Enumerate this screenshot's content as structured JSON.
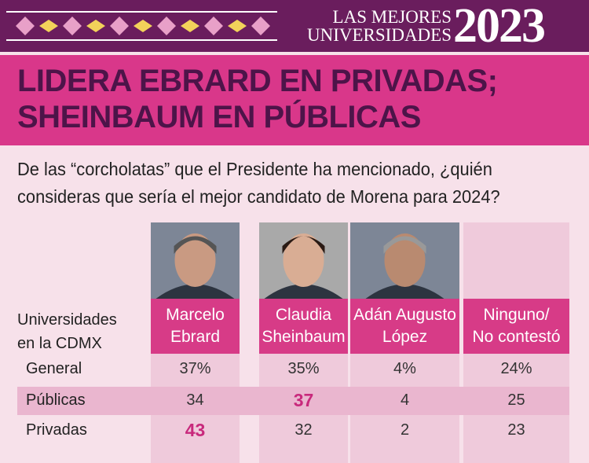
{
  "header": {
    "series": [
      "LAS MEJORES",
      "UNIVERSIDADES"
    ],
    "year": "2023"
  },
  "title": [
    "LIDERA EBRARD EN PRIVADAS;",
    "SHEINBAUM EN PÚBLICAS"
  ],
  "question": [
    "De las “corcholatas” que el Presidente ha mencionado, ¿quién",
    "consideras que sería el mejor candidato de Morena para 2024?"
  ],
  "table": {
    "corner": [
      "Universidades",
      "en la CDMX"
    ],
    "columns": [
      [
        "Marcelo",
        "Ebrard"
      ],
      [
        "Claudia",
        "Sheinbaum"
      ],
      [
        "Adán Augusto",
        "López"
      ],
      [
        "Ninguno/",
        "No contestó"
      ]
    ],
    "rows": [
      {
        "label": "General",
        "cells": [
          "37%",
          "35%",
          "4%",
          "24%"
        ]
      },
      {
        "label": "Públicas",
        "cells": [
          "34",
          "37",
          "4",
          "25"
        ]
      },
      {
        "label": "Privadas",
        "cells": [
          "43",
          "32",
          "2",
          "23"
        ]
      }
    ],
    "highlighted": [
      [
        1,
        1
      ],
      [
        2,
        0
      ]
    ],
    "highlight_color": "#c8297c"
  }
}
